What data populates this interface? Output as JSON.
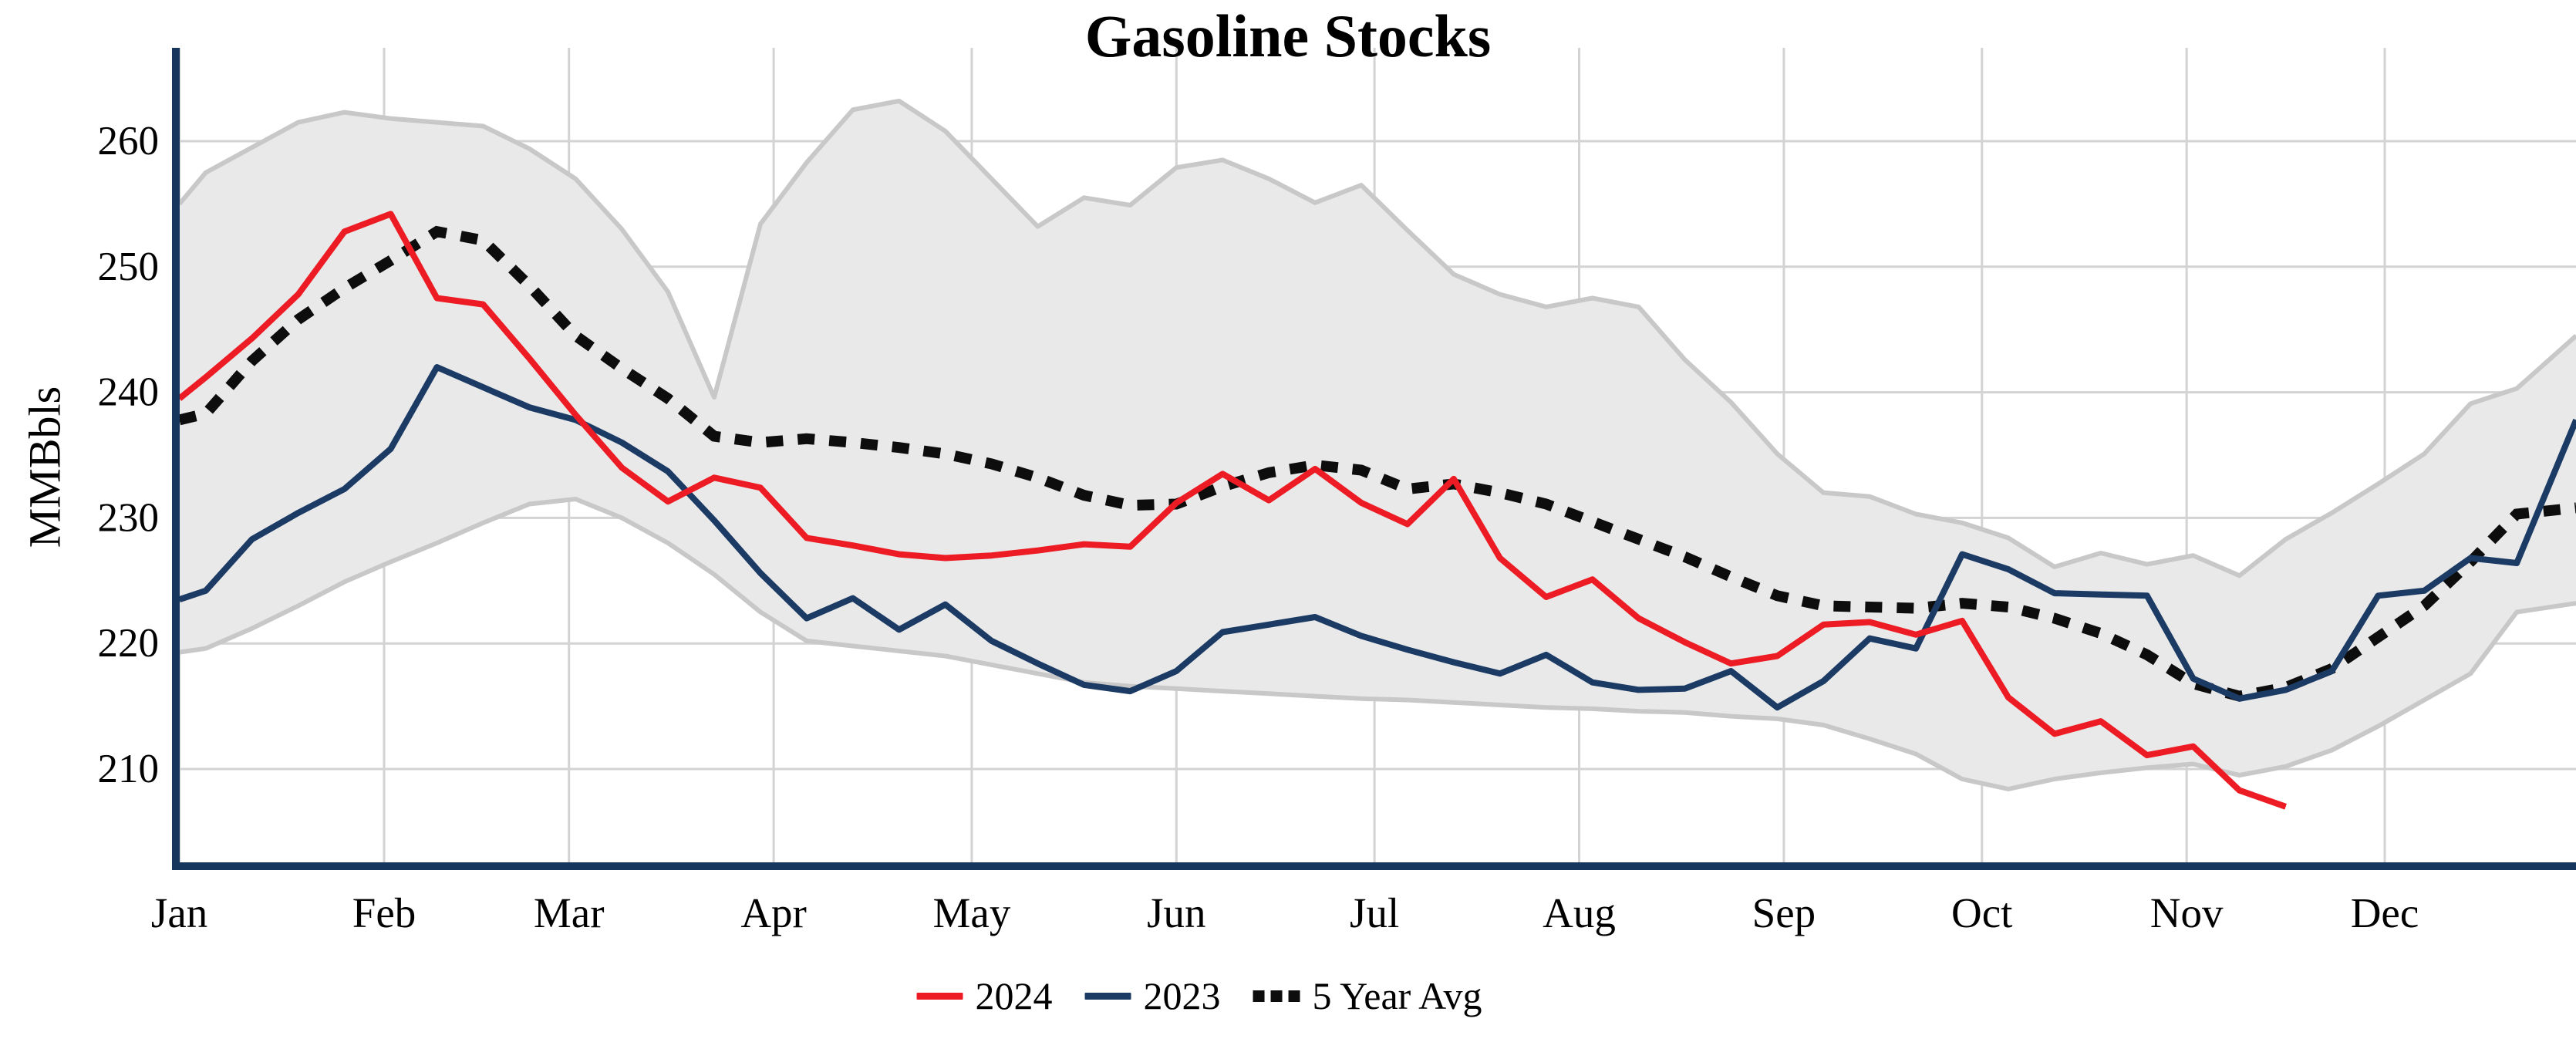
{
  "chart_data": {
    "type": "line",
    "title": "Gasoline Stocks",
    "ylabel": "MMBbls",
    "x_axis": {
      "unit": "day-of-year",
      "month_ticks": [
        {
          "label": "Jan",
          "day": 0
        },
        {
          "label": "Feb",
          "day": 31
        },
        {
          "label": "Mar",
          "day": 59
        },
        {
          "label": "Apr",
          "day": 90
        },
        {
          "label": "May",
          "day": 120
        },
        {
          "label": "Jun",
          "day": 151
        },
        {
          "label": "Jul",
          "day": 181
        },
        {
          "label": "Aug",
          "day": 212
        },
        {
          "label": "Sep",
          "day": 243
        },
        {
          "label": "Oct",
          "day": 273
        },
        {
          "label": "Nov",
          "day": 304
        },
        {
          "label": "Dec",
          "day": 334
        }
      ]
    },
    "y_axis": {
      "ticks": [
        210,
        220,
        230,
        240,
        250,
        260
      ],
      "min_shown": 210,
      "max_shown": 260
    },
    "grid": true,
    "legend_position": "bottom-center",
    "colors": {
      "series_2024": "#ed1c24",
      "series_2023": "#1b3a64",
      "five_year_avg": "#0d0d0d",
      "band_fill": "#e9e9e9",
      "band_edge": "#c8c8c8",
      "gridline": "#d3d3d3",
      "axis_spine": "#17365d"
    },
    "band": {
      "name": "5-year range",
      "days": [
        0,
        4,
        11,
        18,
        25,
        32,
        39,
        46,
        53,
        60,
        67,
        74,
        81,
        88,
        95,
        102,
        109,
        116,
        123,
        130,
        137,
        144,
        151,
        158,
        165,
        172,
        179,
        186,
        193,
        200,
        207,
        214,
        221,
        228,
        235,
        242,
        249,
        256,
        263,
        270,
        277,
        284,
        291,
        298,
        305,
        312,
        319,
        326,
        333,
        340,
        347,
        354,
        363
      ],
      "top": [
        255.0,
        257.5,
        259.5,
        261.5,
        262.3,
        261.8,
        261.5,
        261.2,
        259.4,
        257.0,
        253.0,
        248.0,
        239.6,
        253.4,
        258.3,
        262.5,
        263.2,
        260.8,
        257.0,
        253.2,
        255.5,
        254.9,
        257.9,
        258.5,
        257.0,
        255.1,
        256.5,
        252.9,
        249.4,
        247.8,
        246.8,
        247.5,
        246.8,
        242.6,
        239.2,
        235.1,
        232.0,
        231.7,
        230.3,
        229.6,
        228.4,
        226.1,
        227.2,
        226.3,
        227.0,
        225.4,
        228.3,
        230.4,
        232.7,
        235.1,
        239.1,
        240.3,
        244.5
      ],
      "bottom": [
        219.3,
        219.6,
        221.2,
        223.0,
        224.9,
        226.5,
        228.0,
        229.6,
        231.1,
        231.5,
        230.0,
        228.0,
        225.5,
        222.5,
        220.2,
        219.8,
        219.4,
        219.0,
        218.3,
        217.6,
        216.9,
        216.6,
        216.4,
        216.2,
        216.0,
        215.8,
        215.6,
        215.5,
        215.3,
        215.1,
        214.9,
        214.8,
        214.6,
        214.5,
        214.2,
        214.0,
        213.5,
        212.4,
        211.2,
        209.2,
        208.4,
        209.2,
        209.7,
        210.1,
        210.4,
        209.5,
        210.2,
        211.5,
        213.4,
        215.5,
        217.6,
        222.5,
        223.2
      ]
    },
    "series": [
      {
        "name": "2024",
        "style": "solid",
        "color": "#ed1c24",
        "days": [
          0,
          4,
          11,
          18,
          25,
          32,
          39,
          46,
          53,
          60,
          67,
          74,
          81,
          88,
          95,
          102,
          109,
          116,
          123,
          130,
          137,
          144,
          151,
          158,
          165,
          172,
          179,
          186,
          193,
          200,
          207,
          214,
          221,
          228,
          235,
          242,
          249,
          256,
          263,
          270,
          277,
          284,
          291,
          298,
          305,
          312,
          319
        ],
        "values": [
          239.5,
          241.2,
          244.3,
          247.8,
          252.8,
          254.2,
          247.5,
          247.0,
          242.7,
          238.2,
          234.0,
          231.3,
          233.2,
          232.4,
          228.4,
          227.8,
          227.1,
          226.8,
          227.0,
          227.4,
          227.9,
          227.7,
          231.2,
          233.5,
          231.4,
          233.9,
          231.2,
          229.5,
          233.1,
          226.8,
          223.7,
          225.1,
          222.0,
          220.1,
          218.4,
          219.0,
          221.5,
          221.7,
          220.7,
          221.8,
          215.7,
          212.8,
          213.8,
          211.1,
          211.8,
          208.3,
          207.0
        ]
      },
      {
        "name": "2023",
        "style": "solid",
        "color": "#1b3a64",
        "days": [
          0,
          4,
          11,
          18,
          25,
          32,
          39,
          46,
          53,
          60,
          67,
          74,
          81,
          88,
          95,
          102,
          109,
          116,
          123,
          130,
          137,
          144,
          151,
          158,
          165,
          172,
          179,
          186,
          193,
          200,
          207,
          214,
          221,
          228,
          235,
          242,
          249,
          256,
          263,
          270,
          277,
          284,
          291,
          298,
          305,
          312,
          319,
          326,
          333,
          340,
          347,
          354,
          363
        ],
        "values": [
          223.5,
          224.2,
          228.3,
          230.4,
          232.3,
          235.5,
          242.0,
          240.4,
          238.8,
          237.8,
          236.0,
          233.7,
          229.8,
          225.6,
          222.0,
          223.6,
          221.1,
          223.1,
          220.2,
          218.4,
          216.7,
          216.2,
          217.8,
          220.9,
          221.5,
          222.1,
          220.6,
          219.5,
          218.5,
          217.6,
          219.1,
          216.9,
          216.3,
          216.4,
          217.8,
          214.9,
          217.0,
          220.4,
          219.6,
          227.1,
          225.9,
          224.0,
          223.9,
          223.8,
          217.2,
          215.6,
          216.3,
          217.8,
          223.8,
          224.2,
          226.8,
          226.4,
          237.8
        ]
      },
      {
        "name": "5 Year Avg",
        "style": "dotted",
        "color": "#0d0d0d",
        "days": [
          0,
          4,
          11,
          18,
          25,
          32,
          39,
          46,
          53,
          60,
          67,
          74,
          81,
          88,
          95,
          102,
          109,
          116,
          123,
          130,
          137,
          144,
          151,
          158,
          165,
          172,
          179,
          186,
          193,
          200,
          207,
          214,
          221,
          228,
          235,
          242,
          249,
          256,
          263,
          270,
          277,
          284,
          291,
          298,
          305,
          312,
          319,
          326,
          333,
          340,
          347,
          354,
          363
        ],
        "values": [
          237.8,
          238.3,
          242.5,
          245.8,
          248.3,
          250.5,
          252.8,
          252.1,
          248.5,
          244.5,
          241.9,
          239.5,
          236.5,
          236.0,
          236.3,
          236.0,
          235.6,
          235.1,
          234.3,
          233.2,
          231.8,
          231.0,
          231.1,
          232.5,
          233.6,
          234.2,
          233.8,
          232.3,
          232.7,
          232.0,
          231.1,
          229.7,
          228.3,
          226.9,
          225.3,
          223.8,
          223.0,
          222.9,
          222.8,
          223.2,
          222.9,
          222.0,
          220.8,
          219.1,
          216.8,
          215.8,
          216.5,
          218.0,
          220.5,
          223.0,
          226.5,
          230.3,
          230.8
        ]
      }
    ],
    "legend": [
      {
        "label": "2024",
        "color": "#ed1c24",
        "style": "solid"
      },
      {
        "label": "2023",
        "color": "#1b3a64",
        "style": "solid"
      },
      {
        "label": "5 Year Avg",
        "color": "#0d0d0d",
        "style": "dotted"
      }
    ]
  }
}
